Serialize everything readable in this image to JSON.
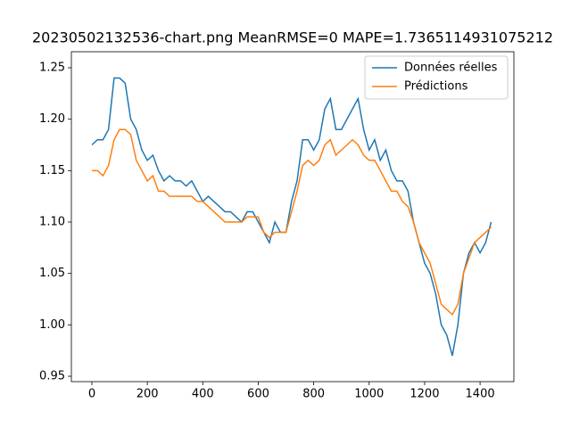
{
  "chart_data": {
    "type": "line",
    "title": "20230502132536-chart.png MeanRMSE=0 MAPE=1.7365114931075212",
    "x": [
      0,
      20,
      40,
      60,
      80,
      100,
      120,
      140,
      160,
      180,
      200,
      220,
      240,
      260,
      280,
      300,
      320,
      340,
      360,
      380,
      400,
      420,
      440,
      460,
      480,
      500,
      520,
      540,
      560,
      580,
      600,
      620,
      640,
      660,
      680,
      700,
      720,
      740,
      760,
      780,
      800,
      820,
      840,
      860,
      880,
      900,
      920,
      940,
      960,
      980,
      1000,
      1020,
      1040,
      1060,
      1080,
      1100,
      1120,
      1140,
      1160,
      1180,
      1200,
      1220,
      1240,
      1260,
      1280,
      1300,
      1320,
      1340,
      1360,
      1380,
      1400,
      1420,
      1440
    ],
    "series": [
      {
        "name": "Données réelles",
        "color": "#1f77b4",
        "values": [
          1.175,
          1.18,
          1.18,
          1.19,
          1.24,
          1.24,
          1.235,
          1.2,
          1.19,
          1.17,
          1.16,
          1.165,
          1.15,
          1.14,
          1.145,
          1.14,
          1.14,
          1.135,
          1.14,
          1.13,
          1.12,
          1.125,
          1.12,
          1.115,
          1.11,
          1.11,
          1.105,
          1.1,
          1.11,
          1.11,
          1.1,
          1.09,
          1.08,
          1.1,
          1.09,
          1.09,
          1.12,
          1.14,
          1.18,
          1.18,
          1.17,
          1.18,
          1.21,
          1.22,
          1.19,
          1.19,
          1.2,
          1.21,
          1.22,
          1.19,
          1.17,
          1.18,
          1.16,
          1.17,
          1.15,
          1.14,
          1.14,
          1.13,
          1.1,
          1.08,
          1.06,
          1.05,
          1.03,
          1.0,
          0.99,
          0.97,
          1.0,
          1.05,
          1.07,
          1.08,
          1.07,
          1.08,
          1.1
        ]
      },
      {
        "name": "Prédictions",
        "color": "#ff7f0e",
        "values": [
          1.15,
          1.15,
          1.145,
          1.155,
          1.18,
          1.19,
          1.19,
          1.185,
          1.16,
          1.15,
          1.14,
          1.145,
          1.13,
          1.13,
          1.125,
          1.125,
          1.125,
          1.125,
          1.125,
          1.12,
          1.12,
          1.115,
          1.11,
          1.105,
          1.1,
          1.1,
          1.1,
          1.1,
          1.105,
          1.105,
          1.105,
          1.09,
          1.085,
          1.09,
          1.09,
          1.09,
          1.11,
          1.13,
          1.155,
          1.16,
          1.155,
          1.16,
          1.175,
          1.18,
          1.165,
          1.17,
          1.175,
          1.18,
          1.175,
          1.165,
          1.16,
          1.16,
          1.15,
          1.14,
          1.13,
          1.13,
          1.12,
          1.115,
          1.1,
          1.08,
          1.07,
          1.06,
          1.04,
          1.02,
          1.015,
          1.01,
          1.02,
          1.05,
          1.065,
          1.08,
          1.085,
          1.09,
          1.095
        ]
      }
    ],
    "xlim": [
      -74,
      1522
    ],
    "ylim": [
      0.9448,
      1.2656
    ],
    "xticks": [
      0,
      200,
      400,
      600,
      800,
      1000,
      1200,
      1400
    ],
    "yticks": [
      0.95,
      {
        "value": 1.0,
        "label": "1.00"
      },
      1.05,
      {
        "value": 1.1,
        "label": "1.10"
      },
      1.15,
      {
        "value": 1.2,
        "label": "1.20"
      },
      1.25
    ],
    "legend": "upper right",
    "grid": false
  }
}
